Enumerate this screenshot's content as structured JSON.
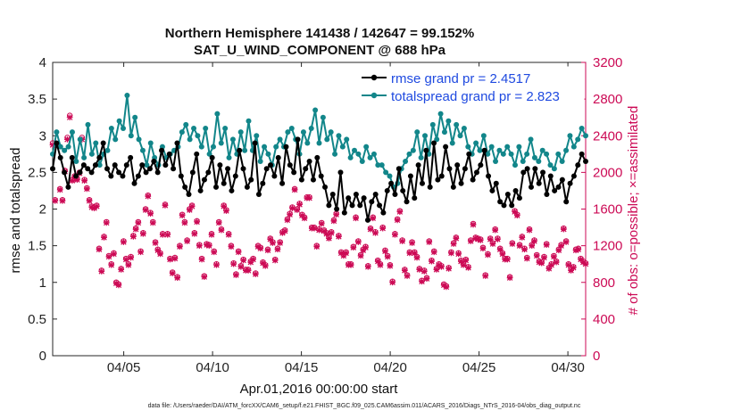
{
  "chart_data": {
    "type": "line",
    "title_line1": "Northern Hemisphere 141438 / 142647 = 99.152%",
    "title_line2": "SAT_U_WIND_COMPONENT @ 688 hPa",
    "xlabel": "Apr.01,2016 00:00:00 start",
    "ylabel_left": "rmse and totalspread",
    "ylabel_right": "# of obs: o=possible; ×=assimilated",
    "x_start_day": 1,
    "x_end_day": 31,
    "xticks": [
      {
        "day": 5,
        "label": "04/05"
      },
      {
        "day": 10,
        "label": "04/10"
      },
      {
        "day": 15,
        "label": "04/15"
      },
      {
        "day": 20,
        "label": "04/20"
      },
      {
        "day": 25,
        "label": "04/25"
      },
      {
        "day": 30,
        "label": "04/30"
      }
    ],
    "ylim_left": [
      0,
      4
    ],
    "yticks_left": [
      "0",
      "0.5",
      "1",
      "1.5",
      "2",
      "2.5",
      "3",
      "3.5",
      "4"
    ],
    "ylim_right": [
      0,
      3200
    ],
    "yticks_right": [
      "0",
      "400",
      "800",
      "1200",
      "1600",
      "2000",
      "2400",
      "2800",
      "3200"
    ],
    "step_hours": 6,
    "series": [
      {
        "name": "rmse",
        "legend": "rmse grand pr = 2.4517",
        "color": "#000000",
        "axis": "left",
        "values": [
          2.55,
          2.9,
          2.7,
          2.5,
          2.3,
          2.7,
          2.45,
          2.5,
          2.6,
          2.55,
          2.5,
          2.6,
          2.7,
          2.9,
          2.55,
          2.45,
          2.6,
          2.5,
          2.45,
          2.6,
          2.7,
          2.35,
          2.45,
          2.6,
          2.5,
          2.55,
          2.65,
          2.5,
          2.8,
          2.6,
          2.75,
          2.55,
          2.9,
          2.45,
          2.3,
          2.2,
          2.5,
          2.75,
          2.25,
          2.4,
          2.5,
          2.7,
          2.3,
          2.6,
          2.35,
          2.55,
          2.25,
          2.45,
          2.8,
          2.55,
          2.3,
          2.4,
          2.9,
          2.2,
          2.35,
          2.55,
          2.6,
          2.45,
          2.7,
          2.35,
          2.85,
          2.6,
          2.5,
          2.95,
          2.4,
          2.55,
          2.65,
          2.4,
          2.7,
          2.45,
          2.3,
          2.05,
          2.2,
          2.0,
          2.5,
          1.95,
          2.15,
          2.05,
          2.2,
          2.05,
          2.15,
          1.85,
          2.1,
          2.2,
          2.05,
          1.95,
          2.25,
          2.35,
          2.2,
          2.55,
          2.25,
          2.1,
          2.45,
          2.15,
          2.6,
          2.35,
          2.8,
          2.3,
          2.9,
          2.4,
          2.45,
          2.85,
          2.55,
          2.3,
          2.6,
          2.35,
          2.55,
          2.75,
          2.4,
          2.5,
          2.6,
          2.8,
          2.45,
          2.25,
          2.35,
          2.1,
          2.05,
          2.2,
          2.05,
          2.25,
          2.15,
          2.5,
          2.55,
          2.3,
          2.55,
          2.35,
          2.5,
          2.2,
          2.45,
          2.25,
          2.3,
          2.4,
          2.1,
          2.35,
          2.45,
          2.6,
          2.75,
          2.65
        ]
      },
      {
        "name": "totalspread",
        "legend": "totalspread grand pr = 2.823",
        "color": "#12868a",
        "axis": "left",
        "values": [
          2.75,
          3.05,
          2.85,
          2.8,
          2.85,
          3.05,
          2.65,
          2.95,
          2.7,
          3.15,
          2.75,
          2.9,
          2.6,
          2.75,
          2.8,
          3.1,
          2.95,
          3.2,
          3.1,
          3.55,
          3.0,
          3.25,
          2.95,
          2.8,
          2.6,
          2.9,
          2.7,
          2.6,
          2.85,
          2.7,
          2.75,
          2.8,
          2.85,
          3.05,
          3.15,
          2.95,
          3.1,
          3.0,
          2.85,
          3.1,
          2.75,
          2.85,
          3.3,
          2.9,
          3.1,
          2.7,
          2.95,
          2.75,
          3.05,
          2.8,
          3.2,
          2.8,
          3.0,
          2.65,
          2.85,
          2.75,
          2.6,
          2.85,
          2.95,
          2.85,
          3.05,
          3.1,
          2.95,
          2.75,
          3.05,
          2.9,
          3.1,
          3.35,
          2.9,
          3.25,
          2.95,
          3.05,
          2.75,
          3.0,
          2.85,
          2.95,
          2.7,
          2.8,
          2.75,
          2.65,
          2.85,
          2.7,
          2.75,
          2.6,
          2.6,
          2.5,
          2.45,
          2.3,
          2.35,
          2.55,
          2.65,
          2.75,
          2.8,
          3.05,
          2.7,
          3.0,
          2.75,
          3.15,
          2.95,
          3.3,
          3.05,
          3.2,
          2.9,
          3.15,
          3.0,
          3.1,
          2.85,
          2.75,
          2.9,
          2.8,
          3.0,
          2.75,
          2.85,
          2.65,
          2.8,
          2.75,
          2.85,
          2.75,
          2.6,
          2.85,
          2.65,
          2.75,
          2.95,
          2.7,
          2.65,
          2.8,
          2.75,
          2.6,
          2.55,
          2.75,
          2.65,
          2.8,
          3.0,
          2.85,
          2.95,
          3.1,
          3.0
        ]
      }
    ],
    "nobs_possible": [
      2320,
      1700,
      2310,
      1820,
      1700,
      2020,
      2380,
      2620,
      1920,
      1960,
      1930,
      2000,
      2380,
      1920,
      1830,
      1700,
      1630,
      1620,
      1640,
      1170,
      930,
      1300,
      1460,
      1090,
      1000,
      1120,
      800,
      780,
      950,
      1250,
      1060,
      1000,
      1080,
      1310,
      1390,
      1460,
      1140,
      1340,
      1600,
      1750,
      1560,
      1460,
      1240,
      1160,
      1120,
      1330,
      1650,
      1330,
      1060,
      910,
      1070,
      860,
      1200,
      1540,
      1460,
      1260,
      1600,
      1640,
      1340,
      1470,
      1210,
      1060,
      870,
      1220,
      1210,
      1330,
      1140,
      1000,
      1460,
      1380,
      1640,
      1590,
      1330,
      1200,
      1010,
      890,
      1140,
      980,
      1050,
      940,
      940,
      1030,
      1060,
      900,
      1200,
      1180,
      1020,
      990,
      1160,
      1280,
      1240,
      1050,
      1170,
      1240,
      1350,
      1370,
      1490,
      1550,
      1620,
      1820,
      1600,
      1660,
      1540,
      1510,
      1730,
      1730,
      1400,
      1400,
      1200,
      1380,
      1450,
      1370,
      1340,
      1290,
      1350,
      1480,
      1550,
      1310,
      1130,
      1100,
      1130,
      1000,
      1000,
      1190,
      1510,
      1250,
      1100,
      1160,
      1190,
      980,
      1390,
      1510,
      1350,
      1040,
      1000,
      1400,
      1150,
      1090,
      990,
      810,
      1330,
      1490,
      1580,
      1260,
      940,
      880,
      1130,
      1240,
      1130,
      1080,
      950,
      820,
      930,
      850,
      1250,
      1040,
      1140,
      950,
      1000,
      980,
      780,
      760,
      960,
      1130,
      1230,
      1290,
      1120,
      1040,
      1000,
      1050,
      970,
      1260,
      1440,
      1290,
      1280,
      1270,
      1180,
      880,
      1110,
      1280,
      1230,
      1380,
      1280,
      1170,
      1120,
      1060,
      1060,
      860,
      1230,
      1580,
      1540,
      1210,
      1300,
      1170,
      1070,
      1380,
      1210,
      1260,
      1100,
      1030,
      1020,
      1080,
      1220,
      960,
      1000,
      1090,
      1030,
      1160,
      1210,
      1390,
      1250,
      1000,
      940,
      970,
      1160,
      1170,
      1060,
      1030,
      1010
    ],
    "nobs_assimilated": [
      2300,
      1690,
      2290,
      1810,
      1690,
      2010,
      2360,
      2600,
      1910,
      1950,
      1920,
      1990,
      2360,
      1910,
      1820,
      1690,
      1620,
      1610,
      1630,
      1160,
      920,
      1290,
      1450,
      1080,
      990,
      1110,
      790,
      770,
      940,
      1240,
      1050,
      990,
      1070,
      1300,
      1380,
      1450,
      1130,
      1330,
      1590,
      1740,
      1550,
      1450,
      1230,
      1150,
      1110,
      1320,
      1640,
      1320,
      1050,
      900,
      1060,
      850,
      1190,
      1530,
      1450,
      1250,
      1590,
      1630,
      1330,
      1460,
      1200,
      1050,
      860,
      1210,
      1200,
      1320,
      1130,
      990,
      1450,
      1370,
      1630,
      1580,
      1320,
      1190,
      1000,
      880,
      1130,
      970,
      1040,
      930,
      930,
      1020,
      1050,
      890,
      1190,
      1170,
      1010,
      980,
      1150,
      1270,
      1230,
      1040,
      1160,
      1230,
      1340,
      1360,
      1480,
      1540,
      1610,
      1810,
      1590,
      1650,
      1530,
      1500,
      1720,
      1720,
      1390,
      1390,
      1190,
      1370,
      1440,
      1360,
      1330,
      1280,
      1340,
      1470,
      1540,
      1300,
      1120,
      1090,
      1120,
      990,
      990,
      1180,
      1500,
      1240,
      1090,
      1150,
      1180,
      970,
      1380,
      1500,
      1340,
      1030,
      990,
      1390,
      1140,
      1080,
      980,
      800,
      1320,
      1480,
      1570,
      1250,
      930,
      870,
      1120,
      1230,
      1120,
      1070,
      940,
      810,
      920,
      840,
      1240,
      1030,
      1130,
      940,
      990,
      970,
      770,
      750,
      950,
      1120,
      1220,
      1280,
      1110,
      1030,
      990,
      1040,
      960,
      1250,
      1430,
      1280,
      1270,
      1260,
      1170,
      870,
      1100,
      1270,
      1220,
      1370,
      1270,
      1160,
      1110,
      1050,
      1050,
      850,
      1220,
      1570,
      1530,
      1200,
      1290,
      1160,
      1060,
      1370,
      1200,
      1250,
      1090,
      1020,
      1010,
      1070,
      1210,
      950,
      990,
      1080,
      1020,
      1150,
      1200,
      1380,
      1240,
      990,
      930,
      960,
      1150,
      1160,
      1050,
      1020,
      1000
    ],
    "nobs_color": "#cc0a55",
    "footer": "data file: /Users/raeder/DAI/ATM_forcXX/CAM6_setup/f.e21.FHIST_BGC.f09_025.CAM6assim.011/ACARS_2016/Diags_NTrS_2016-04/obs_diag_output.nc"
  }
}
